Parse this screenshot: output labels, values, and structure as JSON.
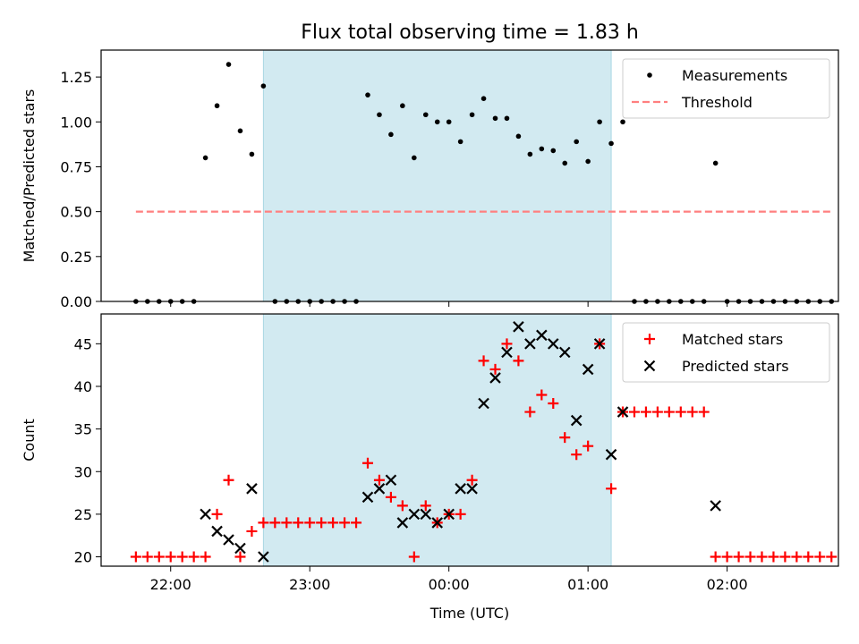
{
  "title": "Flux total observing time = 1.83 h",
  "colors": {
    "measurement": "#000000",
    "threshold": "#ff7f7f",
    "matched": "#ff0000",
    "predicted": "#000000",
    "observing_window": "#add8e6"
  },
  "chart_data": [
    {
      "type": "scatter",
      "panel": "top",
      "title": "Flux total observing time = 1.83 h",
      "xlabel": "",
      "ylabel": "Matched/Predicted stars",
      "xlim": [
        "21:30",
        "02:48"
      ],
      "ylim": [
        0,
        1.4
      ],
      "y_ticks": [
        0.0,
        0.25,
        0.5,
        0.75,
        1.0,
        1.25
      ],
      "y_tick_labels": [
        "0.00",
        "0.25",
        "0.50",
        "0.75",
        "1.00",
        "1.25"
      ],
      "observing_window": [
        "22:40",
        "01:10"
      ],
      "legend": {
        "placement": "top-right",
        "entries": [
          "Measurements",
          "Threshold"
        ]
      },
      "threshold": {
        "name": "Threshold",
        "value": 0.5,
        "x_range": [
          "21:45",
          "02:45"
        ]
      },
      "series": [
        {
          "name": "Measurements",
          "marker": "dot",
          "points": [
            [
              "21:45",
              0
            ],
            [
              "21:50",
              0
            ],
            [
              "21:55",
              0
            ],
            [
              "22:00",
              0
            ],
            [
              "22:05",
              0
            ],
            [
              "22:10",
              0
            ],
            [
              "22:15",
              0.8
            ],
            [
              "22:20",
              1.09
            ],
            [
              "22:25",
              1.32
            ],
            [
              "22:30",
              0.95
            ],
            [
              "22:35",
              0.82
            ],
            [
              "22:40",
              1.2
            ],
            [
              "22:45",
              0
            ],
            [
              "22:50",
              0
            ],
            [
              "22:55",
              0
            ],
            [
              "23:00",
              0
            ],
            [
              "23:05",
              0
            ],
            [
              "23:10",
              0
            ],
            [
              "23:15",
              0
            ],
            [
              "23:20",
              0
            ],
            [
              "23:25",
              1.15
            ],
            [
              "23:30",
              1.04
            ],
            [
              "23:35",
              0.93
            ],
            [
              "23:40",
              1.09
            ],
            [
              "23:45",
              0.8
            ],
            [
              "23:50",
              1.04
            ],
            [
              "23:55",
              1.0
            ],
            [
              "00:00",
              1.0
            ],
            [
              "00:05",
              0.89
            ],
            [
              "00:10",
              1.04
            ],
            [
              "00:15",
              1.13
            ],
            [
              "00:20",
              1.02
            ],
            [
              "00:25",
              1.02
            ],
            [
              "00:30",
              0.92
            ],
            [
              "00:35",
              0.82
            ],
            [
              "00:40",
              0.85
            ],
            [
              "00:45",
              0.84
            ],
            [
              "00:50",
              0.77
            ],
            [
              "00:55",
              0.89
            ],
            [
              "01:00",
              0.78
            ],
            [
              "01:05",
              1.0
            ],
            [
              "01:10",
              0.88
            ],
            [
              "01:15",
              1.0
            ],
            [
              "01:20",
              0
            ],
            [
              "01:25",
              0
            ],
            [
              "01:30",
              0
            ],
            [
              "01:35",
              0
            ],
            [
              "01:40",
              0
            ],
            [
              "01:45",
              0
            ],
            [
              "01:50",
              0
            ],
            [
              "01:55",
              0.77
            ],
            [
              "02:00",
              0
            ],
            [
              "02:05",
              0
            ],
            [
              "02:10",
              0
            ],
            [
              "02:15",
              0
            ],
            [
              "02:20",
              0
            ],
            [
              "02:25",
              0
            ],
            [
              "02:30",
              0
            ],
            [
              "02:35",
              0
            ],
            [
              "02:40",
              0
            ],
            [
              "02:45",
              0
            ]
          ]
        }
      ]
    },
    {
      "type": "scatter",
      "panel": "bottom",
      "xlabel": "Time (UTC)",
      "ylabel": "Count",
      "xlim": [
        "21:30",
        "02:48"
      ],
      "ylim": [
        18.9,
        48.5
      ],
      "x_ticks": [
        "22:00",
        "23:00",
        "00:00",
        "01:00",
        "02:00"
      ],
      "x_tick_labels": [
        "22:00",
        "23:00",
        "00:00",
        "01:00",
        "02:00"
      ],
      "y_ticks": [
        20,
        25,
        30,
        35,
        40,
        45
      ],
      "y_tick_labels": [
        "20",
        "25",
        "30",
        "35",
        "40",
        "45"
      ],
      "observing_window": [
        "22:40",
        "01:10"
      ],
      "legend": {
        "placement": "top-right",
        "entries": [
          "Matched stars",
          "Predicted stars"
        ]
      },
      "series": [
        {
          "name": "Matched stars",
          "marker": "plus",
          "points": [
            [
              "21:45",
              20
            ],
            [
              "21:50",
              20
            ],
            [
              "21:55",
              20
            ],
            [
              "22:00",
              20
            ],
            [
              "22:05",
              20
            ],
            [
              "22:10",
              20
            ],
            [
              "22:15",
              20
            ],
            [
              "22:20",
              25
            ],
            [
              "22:25",
              29
            ],
            [
              "22:30",
              20
            ],
            [
              "22:35",
              23
            ],
            [
              "22:40",
              24
            ],
            [
              "22:45",
              24
            ],
            [
              "22:50",
              24
            ],
            [
              "22:55",
              24
            ],
            [
              "23:00",
              24
            ],
            [
              "23:05",
              24
            ],
            [
              "23:10",
              24
            ],
            [
              "23:15",
              24
            ],
            [
              "23:20",
              24
            ],
            [
              "23:25",
              31
            ],
            [
              "23:30",
              29
            ],
            [
              "23:35",
              27
            ],
            [
              "23:40",
              26
            ],
            [
              "23:45",
              20
            ],
            [
              "23:50",
              26
            ],
            [
              "23:55",
              24
            ],
            [
              "00:00",
              25
            ],
            [
              "00:05",
              25
            ],
            [
              "00:10",
              29
            ],
            [
              "00:15",
              43
            ],
            [
              "00:20",
              42
            ],
            [
              "00:25",
              45
            ],
            [
              "00:30",
              43
            ],
            [
              "00:35",
              37
            ],
            [
              "00:40",
              39
            ],
            [
              "00:45",
              38
            ],
            [
              "00:50",
              34
            ],
            [
              "00:55",
              32
            ],
            [
              "01:00",
              33
            ],
            [
              "01:05",
              45
            ],
            [
              "01:10",
              28
            ],
            [
              "01:15",
              37
            ],
            [
              "01:20",
              37
            ],
            [
              "01:25",
              37
            ],
            [
              "01:30",
              37
            ],
            [
              "01:35",
              37
            ],
            [
              "01:40",
              37
            ],
            [
              "01:45",
              37
            ],
            [
              "01:50",
              37
            ],
            [
              "01:55",
              20
            ],
            [
              "02:00",
              20
            ],
            [
              "02:05",
              20
            ],
            [
              "02:10",
              20
            ],
            [
              "02:15",
              20
            ],
            [
              "02:20",
              20
            ],
            [
              "02:25",
              20
            ],
            [
              "02:30",
              20
            ],
            [
              "02:35",
              20
            ],
            [
              "02:40",
              20
            ],
            [
              "02:45",
              20
            ]
          ]
        },
        {
          "name": "Predicted stars",
          "marker": "x",
          "points": [
            [
              "22:15",
              25
            ],
            [
              "22:20",
              23
            ],
            [
              "22:25",
              22
            ],
            [
              "22:30",
              21
            ],
            [
              "22:35",
              28
            ],
            [
              "22:40",
              20
            ],
            [
              "23:25",
              27
            ],
            [
              "23:30",
              28
            ],
            [
              "23:35",
              29
            ],
            [
              "23:40",
              24
            ],
            [
              "23:45",
              25
            ],
            [
              "23:50",
              25
            ],
            [
              "23:55",
              24
            ],
            [
              "00:00",
              25
            ],
            [
              "00:05",
              28
            ],
            [
              "00:10",
              28
            ],
            [
              "00:15",
              38
            ],
            [
              "00:20",
              41
            ],
            [
              "00:25",
              44
            ],
            [
              "00:30",
              47
            ],
            [
              "00:35",
              45
            ],
            [
              "00:40",
              46
            ],
            [
              "00:45",
              45
            ],
            [
              "00:50",
              44
            ],
            [
              "00:55",
              36
            ],
            [
              "01:00",
              42
            ],
            [
              "01:05",
              45
            ],
            [
              "01:10",
              32
            ],
            [
              "01:15",
              37
            ],
            [
              "01:55",
              26
            ]
          ]
        }
      ]
    }
  ]
}
